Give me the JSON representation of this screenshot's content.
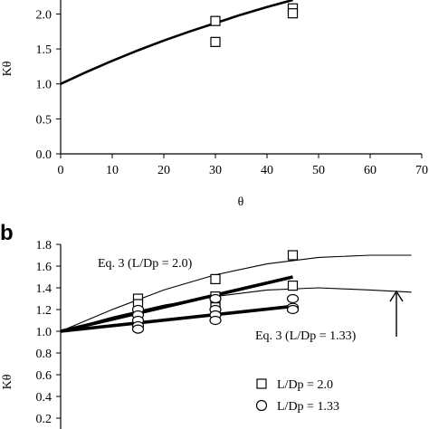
{
  "chart_data": [
    {
      "type": "scatter",
      "panel_label": "",
      "xlabel": "θ",
      "ylabel": "Kθ",
      "xlim": [
        0,
        70
      ],
      "ylim": [
        0,
        2.2
      ],
      "x_ticks": [
        "0",
        "10",
        "20",
        "30",
        "40",
        "50",
        "60",
        "70"
      ],
      "y_ticks": [
        "0.0",
        "0.5",
        "1.0",
        "1.5",
        "2.0"
      ],
      "series": [
        {
          "kind": "curve",
          "x": [
            0,
            5,
            10,
            15,
            20,
            25,
            30,
            35,
            40,
            45
          ],
          "y": [
            1.0,
            1.17,
            1.33,
            1.48,
            1.62,
            1.75,
            1.87,
            1.99,
            2.1,
            2.2
          ]
        },
        {
          "kind": "squares",
          "x": [
            30,
            30,
            45,
            45
          ],
          "y": [
            1.9,
            1.6,
            2.08,
            2.01
          ]
        }
      ]
    },
    {
      "type": "scatter",
      "panel_label": "b",
      "xlabel": "",
      "ylabel": "Kθ",
      "xlim": [
        0,
        70
      ],
      "ylim": [
        0.1,
        1.8
      ],
      "y_ticks": [
        "0.2",
        "0.4",
        "0.6",
        "0.8",
        "1.0",
        "1.2",
        "1.4",
        "1.6",
        "1.8"
      ],
      "annotations": [
        "Eq. 3 (L/Dp = 2.0)",
        "Eq. 3 (L/Dp = 1.33)"
      ],
      "legend": {
        "placement": "bottom-right",
        "entries": [
          {
            "marker": "square",
            "label": "L/Dp = 2.0"
          },
          {
            "marker": "circle",
            "label": "L/Dp = 1.33"
          }
        ]
      },
      "series": [
        {
          "kind": "thin-curve",
          "x": [
            0,
            10,
            20,
            30,
            40,
            50,
            60,
            68
          ],
          "y": [
            1.0,
            1.2,
            1.38,
            1.52,
            1.62,
            1.68,
            1.7,
            1.7
          ]
        },
        {
          "kind": "thin-curve",
          "x": [
            0,
            10,
            20,
            30,
            40,
            50,
            60,
            68
          ],
          "y": [
            1.0,
            1.13,
            1.24,
            1.32,
            1.38,
            1.4,
            1.38,
            1.36
          ]
        },
        {
          "kind": "thick-line",
          "x": [
            0,
            45
          ],
          "y": [
            1.0,
            1.5
          ]
        },
        {
          "kind": "thick-line",
          "x": [
            0,
            45
          ],
          "y": [
            1.0,
            1.23
          ]
        },
        {
          "kind": "squares",
          "x": [
            15,
            15,
            30,
            30,
            30,
            30,
            45,
            45
          ],
          "y": [
            1.3,
            1.25,
            1.48,
            1.32,
            1.27,
            1.22,
            1.7,
            1.42
          ]
        },
        {
          "kind": "circles",
          "x": [
            15,
            15,
            15,
            15,
            15,
            30,
            30,
            30,
            30,
            45,
            45,
            45
          ],
          "y": [
            1.2,
            1.15,
            1.1,
            1.05,
            1.02,
            1.3,
            1.2,
            1.15,
            1.1,
            1.3,
            1.22,
            1.2
          ]
        }
      ]
    }
  ]
}
